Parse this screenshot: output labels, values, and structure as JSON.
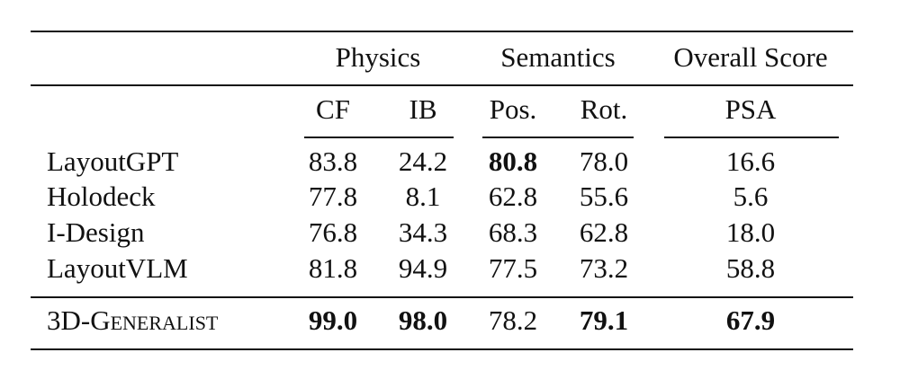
{
  "table": {
    "group_headers": [
      "Physics",
      "Semantics",
      "Overall Score"
    ],
    "sub_headers": [
      "CF",
      "IB",
      "Pos.",
      "Rot.",
      "PSA"
    ],
    "rows": [
      {
        "method": "LayoutGPT",
        "values": [
          "83.8",
          "24.2",
          "80.8",
          "78.0",
          "16.6"
        ],
        "bold": [
          false,
          false,
          true,
          false,
          false
        ]
      },
      {
        "method": "Holodeck",
        "values": [
          "77.8",
          "8.1",
          "62.8",
          "55.6",
          "5.6"
        ],
        "bold": [
          false,
          false,
          false,
          false,
          false
        ]
      },
      {
        "method": "I-Design",
        "values": [
          "76.8",
          "34.3",
          "68.3",
          "62.8",
          "18.0"
        ],
        "bold": [
          false,
          false,
          false,
          false,
          false
        ]
      },
      {
        "method": "LayoutVLM",
        "values": [
          "81.8",
          "94.9",
          "77.5",
          "73.2",
          "58.8"
        ],
        "bold": [
          false,
          false,
          false,
          false,
          false
        ]
      }
    ],
    "ours": {
      "method": "3D-Generalist",
      "values": [
        "99.0",
        "98.0",
        "78.2",
        "79.1",
        "67.9"
      ],
      "bold": [
        true,
        true,
        false,
        true,
        true
      ]
    }
  }
}
